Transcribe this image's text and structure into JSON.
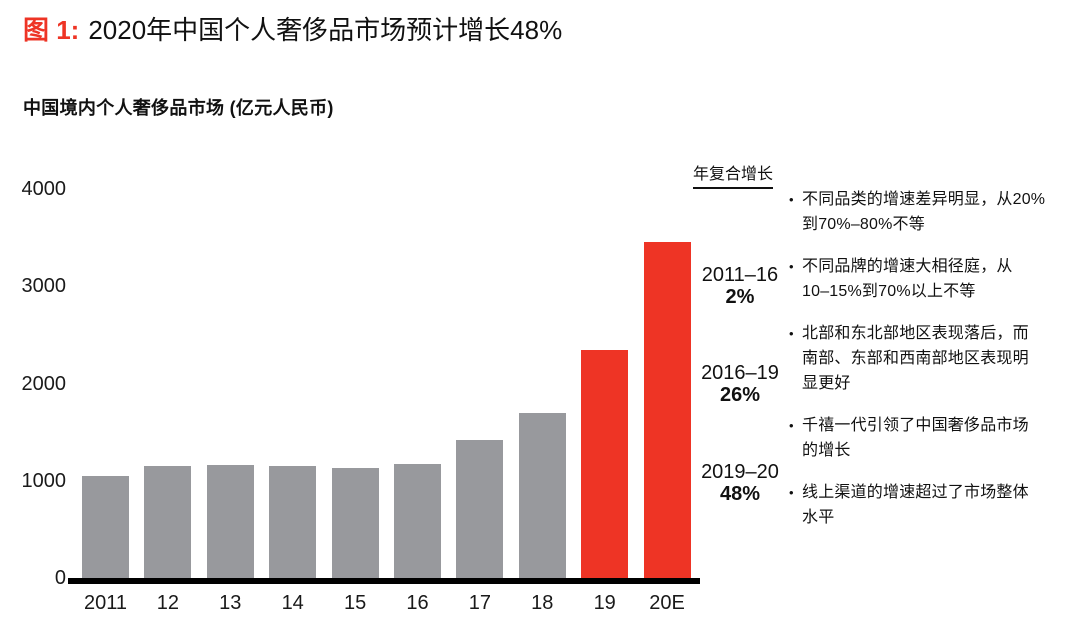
{
  "title": {
    "tag": "图 1:",
    "text": "2020年中国个人奢侈品市场预计增长48%"
  },
  "subtitle": "中国境内个人奢侈品市场 (亿元人民币)",
  "chart_data": {
    "type": "bar",
    "title": "中国境内个人奢侈品市场 (亿元人民币)",
    "xlabel": "",
    "ylabel": "亿元人民币",
    "categories": [
      "2011",
      "12",
      "13",
      "14",
      "15",
      "16",
      "17",
      "18",
      "19",
      "20E"
    ],
    "values": [
      1050,
      1150,
      1160,
      1150,
      1130,
      1170,
      1420,
      1700,
      2340,
      3460
    ],
    "ylim": [
      0,
      4000
    ],
    "yticks": [
      0,
      1000,
      2000,
      3000,
      4000
    ],
    "grid": "off",
    "bar_colors": [
      "gray",
      "gray",
      "gray",
      "gray",
      "gray",
      "gray",
      "gray",
      "gray",
      "red",
      "red"
    ],
    "colors": {
      "gray": "#98999d",
      "red": "#ee3425"
    }
  },
  "cagr": {
    "header": "年复合增长",
    "entries": [
      {
        "period": "2011–16",
        "value": "2%"
      },
      {
        "period": "2016–19",
        "value": "26%"
      },
      {
        "period": "2019–20",
        "value": "48%"
      }
    ]
  },
  "insights": [
    {
      "lines": [
        "不同品类的增速差异明显，从20%",
        "到70%–80%不等"
      ]
    },
    {
      "lines": [
        "不同品牌的增速大相径庭，从",
        "10–15%到70%以上不等"
      ]
    },
    {
      "lines": [
        "北部和东北部地区表现落后，而",
        "南部、东部和西南部地区表现明",
        "显更好"
      ]
    },
    {
      "lines": [
        "千禧一代引领了中国奢侈品市场",
        "的增长"
      ]
    },
    {
      "lines": [
        "线上渠道的增速超过了市场整体",
        "水平"
      ]
    }
  ],
  "colors": {
    "accent_red": "#ee3425",
    "bar_gray": "#98999d",
    "axis_black": "#000000"
  }
}
